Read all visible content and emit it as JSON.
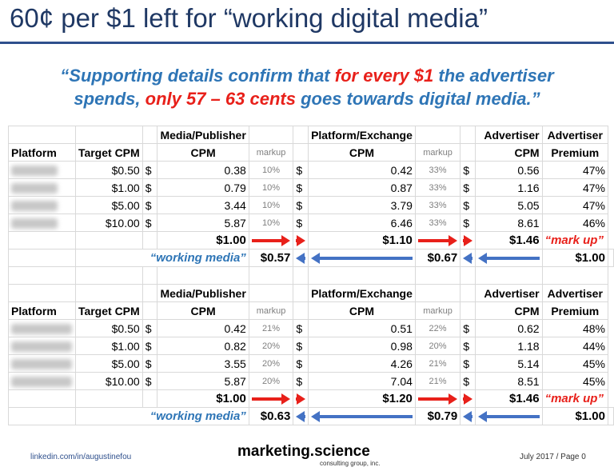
{
  "title": "60¢ per $1 left for “working digital media”",
  "quote": {
    "line1_a": "“Supporting details confirm that ",
    "line1_b": "for every $1",
    "line1_c": " the advertiser",
    "line2_a": "spends, ",
    "line2_b": "only 57 – 63 cents",
    "line2_c": " goes towards digital media.”"
  },
  "headers": {
    "platform": "Platform",
    "target_cpm": "Target CPM",
    "media_publisher": "Media/Publisher",
    "cpm": "CPM",
    "markup": "markup",
    "platform_exchange": "Platform/Exchange",
    "advertiser": "Advertiser",
    "advertiser2": "Advertiser",
    "premium": "Premium"
  },
  "table1": {
    "rows": [
      {
        "target": "$0.50",
        "media_cur": "$",
        "media": "0.38",
        "markup1": "10%",
        "plat_cur": "$",
        "platform": "0.42",
        "markup2": "33%",
        "adv_cur": "$",
        "advertiser": "0.56",
        "premium": "47%"
      },
      {
        "target": "$1.00",
        "media_cur": "$",
        "media": "0.79",
        "markup1": "10%",
        "plat_cur": "$",
        "platform": "0.87",
        "markup2": "33%",
        "adv_cur": "$",
        "advertiser": "1.16",
        "premium": "47%"
      },
      {
        "target": "$5.00",
        "media_cur": "$",
        "media": "3.44",
        "markup1": "10%",
        "plat_cur": "$",
        "platform": "3.79",
        "markup2": "33%",
        "adv_cur": "$",
        "advertiser": "5.05",
        "premium": "47%"
      },
      {
        "target": "$10.00",
        "media_cur": "$",
        "media": "5.87",
        "markup1": "10%",
        "plat_cur": "$",
        "platform": "6.46",
        "markup2": "33%",
        "adv_cur": "$",
        "advertiser": "8.61",
        "premium": "46%"
      }
    ],
    "summary_up": {
      "media": "$1.00",
      "platform": "$1.10",
      "advertiser": "$1.46",
      "label": "“mark up”"
    },
    "summary_down": {
      "label": "“working media”",
      "media": "$0.57",
      "platform": "$0.67",
      "advertiser": "$1.00"
    }
  },
  "table2": {
    "rows": [
      {
        "target": "$0.50",
        "media_cur": "$",
        "media": "0.42",
        "markup1": "21%",
        "plat_cur": "$",
        "platform": "0.51",
        "markup2": "22%",
        "adv_cur": "$",
        "advertiser": "0.62",
        "premium": "48%"
      },
      {
        "target": "$1.00",
        "media_cur": "$",
        "media": "0.82",
        "markup1": "20%",
        "plat_cur": "$",
        "platform": "0.98",
        "markup2": "20%",
        "adv_cur": "$",
        "advertiser": "1.18",
        "premium": "44%"
      },
      {
        "target": "$5.00",
        "media_cur": "$",
        "media": "3.55",
        "markup1": "20%",
        "plat_cur": "$",
        "platform": "4.26",
        "markup2": "21%",
        "adv_cur": "$",
        "advertiser": "5.14",
        "premium": "45%"
      },
      {
        "target": "$10.00",
        "media_cur": "$",
        "media": "5.87",
        "markup1": "20%",
        "plat_cur": "$",
        "platform": "7.04",
        "markup2": "21%",
        "adv_cur": "$",
        "advertiser": "8.51",
        "premium": "45%"
      }
    ],
    "summary_up": {
      "media": "$1.00",
      "platform": "$1.20",
      "advertiser": "$1.46",
      "label": "“mark up”"
    },
    "summary_down": {
      "label": "“working media”",
      "media": "$0.63",
      "platform": "$0.79",
      "advertiser": "$1.00"
    }
  },
  "footer": {
    "linkedin": "linkedin.com/in/augustinefou",
    "brand": "marketing.science",
    "brand_sub": "consulting group, inc.",
    "page": "July 2017 / Page 0"
  },
  "colors": {
    "title": "#1f3864",
    "quote": "#2e75b6",
    "highlight": "#e8201a",
    "arrow_red": "#e8201a",
    "arrow_blue": "#4472c4"
  },
  "icons": [
    "arrow-right-icon",
    "arrow-left-icon"
  ]
}
